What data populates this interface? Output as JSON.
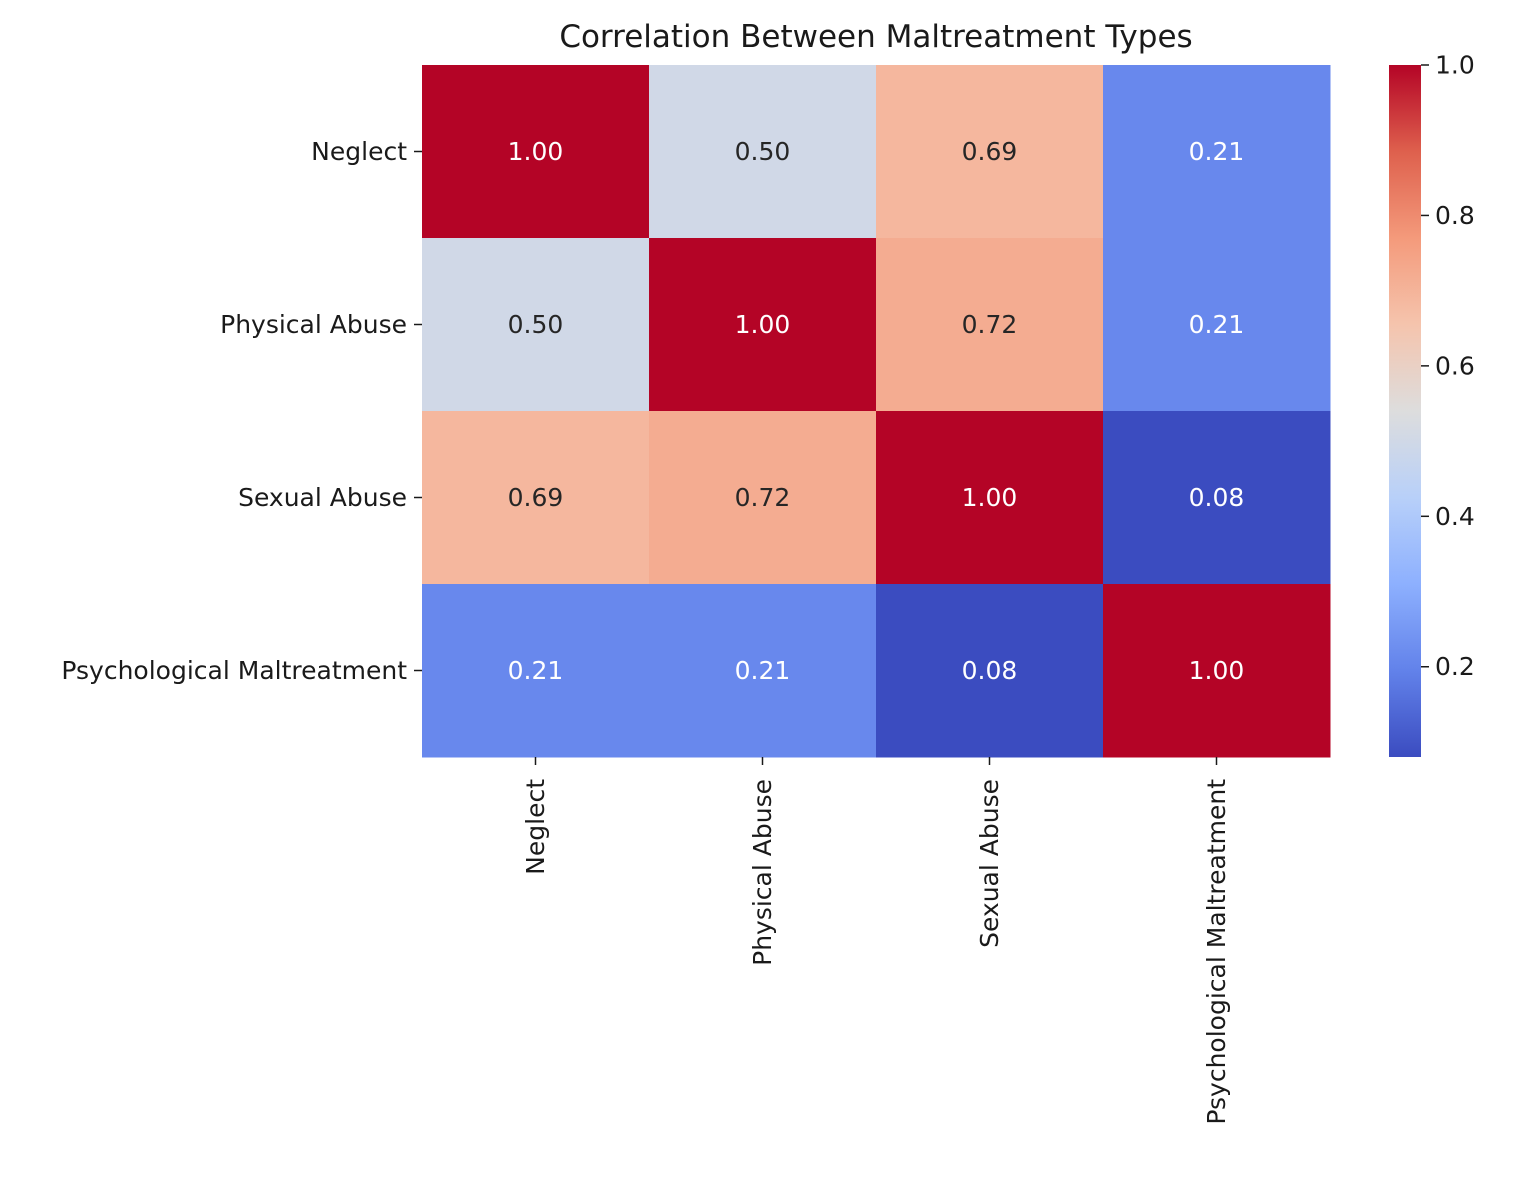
{
  "chart_data": {
    "type": "heatmap",
    "title": "Correlation Between Maltreatment Types",
    "xlabel": "",
    "ylabel": "",
    "rows": [
      "Neglect",
      "Physical Abuse",
      "Sexual Abuse",
      "Psychological Maltreatment"
    ],
    "columns": [
      "Neglect",
      "Physical Abuse",
      "Sexual Abuse",
      "Psychological Maltreatment"
    ],
    "values": [
      [
        1.0,
        0.5,
        0.69,
        0.21
      ],
      [
        0.5,
        1.0,
        0.72,
        0.21
      ],
      [
        0.69,
        0.72,
        1.0,
        0.08
      ],
      [
        0.21,
        0.21,
        0.08,
        1.0
      ]
    ],
    "cell_labels": [
      [
        "1.00",
        "0.50",
        "0.69",
        "0.21"
      ],
      [
        "0.50",
        "1.00",
        "0.72",
        "0.21"
      ],
      [
        "0.69",
        "0.72",
        "1.00",
        "0.08"
      ],
      [
        "0.21",
        "0.21",
        "0.08",
        "1.00"
      ]
    ],
    "colormap": "coolwarm",
    "vmin": 0.08,
    "vmax": 1.0,
    "colorbar": {
      "ticks": [
        0.2,
        0.4,
        0.6,
        0.8,
        1.0
      ],
      "tick_labels": [
        "0.2",
        "0.4",
        "0.6",
        "0.8",
        "1.0"
      ],
      "position": "right"
    },
    "annotated": true,
    "grid": false
  }
}
